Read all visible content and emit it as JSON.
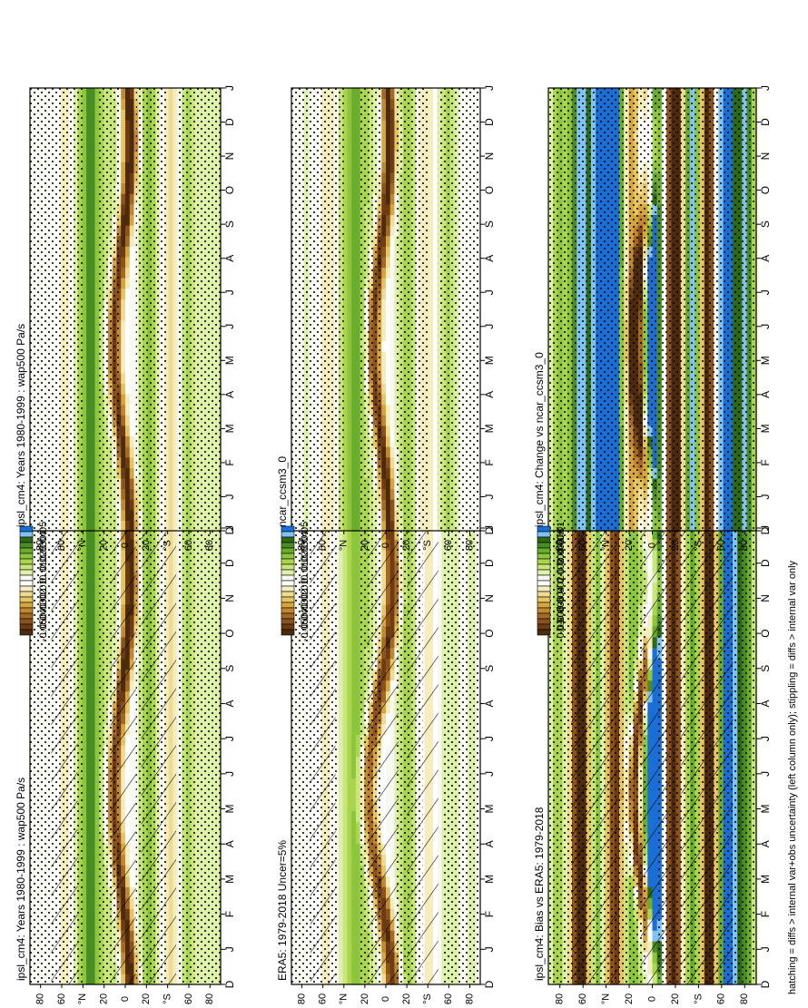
{
  "figure": {
    "footnote": "hatching = diffs > internal var+obs uncertainty (left column only); stippling = diffs > internal var only",
    "colors": {
      "scale": [
        "#1a6fd6",
        "#7fc2f4",
        "#2e6a14",
        "#4a8d24",
        "#6aac2c",
        "#8cc63c",
        "#acd54e",
        "#c8e67a",
        "#def0aa",
        "#f7f9f2",
        "#ffffff",
        "#f6edbe",
        "#efdc90",
        "#e6c561",
        "#d6a63d",
        "#c08830",
        "#a46a25",
        "#8a521c",
        "#6e3c14",
        "#4c2a0c"
      ],
      "dots": "#000000",
      "hatch": "#000000"
    }
  },
  "chart_data": [
    {
      "id": "model-climatology",
      "type": "heatmap",
      "title": "ipsl_cm4: Years 1980-1999 : wap500 Pa/s",
      "x_tick_labels": [
        "D",
        "J",
        "F",
        "M",
        "A",
        "M",
        "J",
        "J",
        "A",
        "S",
        "O",
        "N",
        "D",
        "J"
      ],
      "y_tick_labels": [
        "80",
        "60",
        "°N",
        "20",
        "0",
        "20",
        "°S",
        "60",
        "80"
      ],
      "colorbar_labels": [
        "0.05",
        "0.04",
        "0.03",
        "0.02",
        "0.01",
        "0",
        "-0.01",
        "-0.02",
        "-0.03",
        "-0.04",
        "-0.05"
      ],
      "z_range": [
        -0.05,
        0.05
      ],
      "bands": [
        {
          "lat": 75,
          "value": 0.002
        },
        {
          "lat": 56,
          "value": -0.01
        },
        {
          "lat": 40,
          "value": 0.016
        },
        {
          "lat": 30,
          "value": 0.025
        },
        {
          "lat": 13,
          "value": 0.012
        },
        {
          "lat": -22,
          "value": 0.022
        },
        {
          "lat": -42,
          "value": -0.012
        },
        {
          "lat": -60,
          "value": 0.016
        },
        {
          "lat": -82,
          "value": 0.008
        }
      ],
      "itcz": {
        "lat_mean": 3,
        "lat_amplitude": 8,
        "phase_month": 2.5,
        "value": -0.052,
        "width": 7
      },
      "stipple": {
        "lat_ranges": [
          [
            -90,
            -50
          ],
          [
            -40,
            -10
          ],
          [
            5,
            25
          ],
          [
            40,
            90
          ]
        ]
      },
      "hatch": {
        "lat_ranges": [
          [
            -48,
            -15
          ],
          [
            -10,
            14
          ],
          [
            45,
            70
          ]
        ]
      }
    },
    {
      "id": "reference-climatology",
      "type": "heatmap",
      "title": "ERA5: 1979-2018 Uncer=5%",
      "x_tick_labels": [
        "D",
        "J",
        "F",
        "M",
        "A",
        "M",
        "J",
        "J",
        "A",
        "S",
        "O",
        "N",
        "D",
        "J"
      ],
      "y_tick_labels": [
        "80",
        "60",
        "°N",
        "20",
        "0",
        "20",
        "°S",
        "60",
        "80"
      ],
      "colorbar_labels": [
        "0.05",
        "0.04",
        "0.03",
        "0.02",
        "0.01",
        "0",
        "-0.01",
        "-0.02",
        "-0.03",
        "-0.04",
        "-0.05"
      ],
      "z_range": [
        -0.05,
        0.05
      ],
      "bands": [
        {
          "lat": 75,
          "value": 0.004
        },
        {
          "lat": 58,
          "value": -0.008
        },
        {
          "lat": 40,
          "value": 0.01
        },
        {
          "lat": 28,
          "value": 0.02
        },
        {
          "lat": 15,
          "value": 0.01
        },
        {
          "lat": -20,
          "value": 0.02
        },
        {
          "lat": -40,
          "value": -0.006
        },
        {
          "lat": -60,
          "value": 0.01
        },
        {
          "lat": -82,
          "value": 0.006
        }
      ],
      "itcz": {
        "lat_mean": 5,
        "lat_amplitude": 12,
        "phase_month": 2.5,
        "value": -0.046,
        "width": 8
      },
      "stipple": {
        "lat_ranges": [
          [
            -90,
            -55
          ],
          [
            -35,
            -10
          ],
          [
            5,
            25
          ],
          [
            45,
            90
          ]
        ]
      },
      "hatch": {
        "lat_ranges": [
          [
            -50,
            -20
          ],
          [
            -12,
            18
          ],
          [
            48,
            72
          ]
        ]
      }
    },
    {
      "id": "model-bias",
      "type": "heatmap",
      "title": "ipsl_cm4: Bias vs ERA5: 1979-2018",
      "x_tick_labels": [
        "D",
        "J",
        "F",
        "M",
        "A",
        "M",
        "J",
        "J",
        "A",
        "S",
        "O",
        "N",
        "D",
        "J"
      ],
      "y_tick_labels": [
        "80",
        "60",
        "°N",
        "20",
        "0",
        "20",
        "°S",
        "60",
        "80"
      ],
      "colorbar_labels": [
        "0.01",
        "0.008",
        "0.006",
        "0.004",
        "0.002",
        "0",
        "-0.002",
        "-0.004",
        "-0.006",
        "-0.008",
        "-0.01"
      ],
      "z_range": [
        -0.01,
        0.01
      ],
      "bands": [
        {
          "lat": 80,
          "value": 0.004
        },
        {
          "lat": 62,
          "value": -0.012
        },
        {
          "lat": 48,
          "value": 0.006
        },
        {
          "lat": 32,
          "value": -0.01
        },
        {
          "lat": 20,
          "value": 0.006
        },
        {
          "lat": -2,
          "value": 0.014
        },
        {
          "lat": -18,
          "value": -0.011
        },
        {
          "lat": -35,
          "value": 0.007
        },
        {
          "lat": -50,
          "value": -0.012
        },
        {
          "lat": -64,
          "value": 0.013
        },
        {
          "lat": -80,
          "value": 0.006
        }
      ],
      "itcz": {
        "lat_mean": 8,
        "lat_amplitude": 8,
        "phase_month": 2.5,
        "value": -0.013,
        "width": 6
      },
      "stipple": {
        "lat_ranges": [
          [
            -90,
            -5
          ],
          [
            5,
            90
          ]
        ]
      },
      "hatch": {
        "lat_ranges": [
          [
            -70,
            -25
          ],
          [
            -15,
            10
          ],
          [
            30,
            70
          ]
        ]
      }
    },
    {
      "id": "model-climatology-2",
      "type": "heatmap",
      "title": "ipsl_cm4: Years 1980-1999 : wap500 Pa/s",
      "x_tick_labels": [
        "D",
        "J",
        "F",
        "M",
        "A",
        "M",
        "J",
        "J",
        "A",
        "S",
        "O",
        "N",
        "D",
        "J"
      ],
      "y_tick_labels": [
        "80",
        "60",
        "°N",
        "20",
        "0",
        "20",
        "°S",
        "60",
        "80"
      ],
      "colorbar_labels": [
        "0.05",
        "0.04",
        "0.03",
        "0.02",
        "0.01",
        "0",
        "-0.01",
        "-0.02",
        "-0.03",
        "-0.04",
        "-0.05"
      ],
      "z_range": [
        -0.05,
        0.05
      ],
      "bands": [
        {
          "lat": 75,
          "value": 0.002
        },
        {
          "lat": 56,
          "value": -0.01
        },
        {
          "lat": 40,
          "value": 0.016
        },
        {
          "lat": 30,
          "value": 0.025
        },
        {
          "lat": 13,
          "value": 0.012
        },
        {
          "lat": -22,
          "value": 0.022
        },
        {
          "lat": -42,
          "value": -0.012
        },
        {
          "lat": -60,
          "value": 0.016
        },
        {
          "lat": -82,
          "value": 0.008
        }
      ],
      "itcz": {
        "lat_mean": 3,
        "lat_amplitude": 8,
        "phase_month": 2.5,
        "value": -0.052,
        "width": 7
      },
      "stipple": {
        "lat_ranges": [
          [
            -90,
            -50
          ],
          [
            -40,
            -10
          ],
          [
            5,
            25
          ],
          [
            40,
            90
          ]
        ]
      },
      "hatch": {
        "lat_ranges": []
      }
    },
    {
      "id": "comparison-model",
      "type": "heatmap",
      "title": "ncar_ccsm3_0",
      "x_tick_labels": [
        "D",
        "J",
        "F",
        "M",
        "A",
        "M",
        "J",
        "J",
        "A",
        "S",
        "O",
        "N",
        "D",
        "J"
      ],
      "y_tick_labels": [
        "80",
        "60",
        "°N",
        "20",
        "0",
        "20",
        "°S",
        "60",
        "80"
      ],
      "colorbar_labels": [
        "0.05",
        "0.04",
        "0.03",
        "0.02",
        "0.01",
        "0",
        "-0.01",
        "-0.02",
        "-0.03",
        "-0.04",
        "-0.05"
      ],
      "z_range": [
        -0.05,
        0.05
      ],
      "bands": [
        {
          "lat": 75,
          "value": 0.006
        },
        {
          "lat": 55,
          "value": -0.01
        },
        {
          "lat": 38,
          "value": 0.014
        },
        {
          "lat": 28,
          "value": 0.022
        },
        {
          "lat": 14,
          "value": 0.01
        },
        {
          "lat": -20,
          "value": 0.02
        },
        {
          "lat": -40,
          "value": -0.01
        },
        {
          "lat": -58,
          "value": 0.016
        },
        {
          "lat": -82,
          "value": 0.004
        }
      ],
      "itcz": {
        "lat_mean": 4,
        "lat_amplitude": 8,
        "phase_month": 2.5,
        "value": -0.05,
        "width": 7
      },
      "stipple": {
        "lat_ranges": [
          [
            -90,
            -50
          ],
          [
            -40,
            -10
          ],
          [
            5,
            25
          ],
          [
            40,
            90
          ]
        ]
      },
      "hatch": {
        "lat_ranges": []
      }
    },
    {
      "id": "model-change",
      "type": "heatmap",
      "title": "ipsl_cm4: Change vs ncar_ccsm3_0",
      "x_tick_labels": [
        "D",
        "J",
        "F",
        "M",
        "A",
        "M",
        "J",
        "J",
        "A",
        "S",
        "O",
        "N",
        "D",
        "J"
      ],
      "y_tick_labels": [
        "80",
        "60",
        "°N",
        "20",
        "0",
        "20",
        "°S",
        "60",
        "80"
      ],
      "colorbar_labels": [
        "0.01",
        "0.008",
        "0.006",
        "0.004",
        "0.002",
        "0",
        "-0.002",
        "-0.004",
        "-0.006",
        "-0.008",
        "-0.01"
      ],
      "z_range": [
        -0.01,
        0.01
      ],
      "bands": [
        {
          "lat": 80,
          "value": 0.004
        },
        {
          "lat": 62,
          "value": 0.008
        },
        {
          "lat": 45,
          "value": 0.01
        },
        {
          "lat": 32,
          "value": 0.012
        },
        {
          "lat": 20,
          "value": -0.006
        },
        {
          "lat": 0,
          "value": 0.012
        },
        {
          "lat": -20,
          "value": -0.012
        },
        {
          "lat": -35,
          "value": 0.011
        },
        {
          "lat": -48,
          "value": -0.012
        },
        {
          "lat": -62,
          "value": 0.012
        },
        {
          "lat": -80,
          "value": 0.008
        }
      ],
      "itcz": {
        "lat_mean": 8,
        "lat_amplitude": 6,
        "phase_month": 2.5,
        "value": -0.012,
        "width": 6
      },
      "stipple": {
        "lat_ranges": [
          [
            -90,
            90
          ]
        ]
      },
      "hatch": {
        "lat_ranges": []
      }
    }
  ]
}
